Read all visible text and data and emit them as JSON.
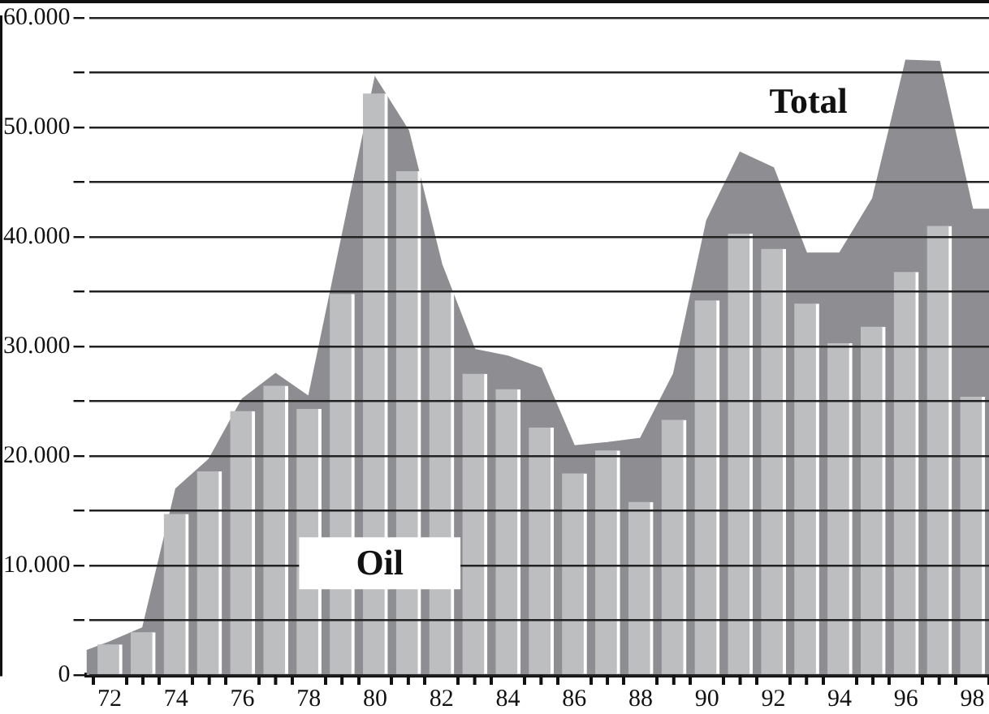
{
  "chart_data": {
    "type": "bar",
    "xlim": [
      71.3,
      98.5
    ],
    "xticks": [
      72,
      {
        "value": 73,
        "label": null
      },
      74,
      {
        "value": 75,
        "label": null
      },
      76,
      {
        "value": 77,
        "label": null
      },
      78,
      {
        "value": 79,
        "label": null
      },
      80,
      {
        "value": 81,
        "label": null
      },
      82,
      {
        "value": 83,
        "label": null
      },
      84,
      {
        "value": 85,
        "label": null
      },
      86,
      {
        "value": 87,
        "label": null
      },
      88,
      {
        "value": 89,
        "label": null
      },
      90,
      {
        "value": 91,
        "label": null
      },
      92,
      {
        "value": 93,
        "label": null
      },
      94,
      {
        "value": 95,
        "label": null
      },
      96,
      {
        "value": 97,
        "label": null
      },
      98
    ],
    "ylim": [
      0,
      60000
    ],
    "yticks": [
      {
        "value": 0,
        "label": "0"
      },
      {
        "value": 5000,
        "label": null
      },
      {
        "value": 10000,
        "label": "10.000"
      },
      {
        "value": 15000,
        "label": null
      },
      {
        "value": 20000,
        "label": "20.000"
      },
      {
        "value": 25000,
        "label": null
      },
      {
        "value": 30000,
        "label": "30.000"
      },
      {
        "value": 35000,
        "label": null
      },
      {
        "value": 40000,
        "label": "40.000"
      },
      {
        "value": 45000,
        "label": null
      },
      {
        "value": 50000,
        "label": "50.000"
      },
      {
        "value": 55000,
        "label": null
      },
      {
        "value": 60000,
        "label": "60.000"
      }
    ],
    "grid": "y",
    "legend": false,
    "series": [
      {
        "name": "Total",
        "type": "area",
        "color": "#8e8e92",
        "x": [
          71.3,
          72,
          73,
          74,
          75,
          76,
          77,
          78,
          79,
          80,
          81,
          82,
          83,
          84,
          85,
          86,
          87,
          88,
          89,
          90,
          91,
          92,
          93,
          94,
          95,
          96,
          97,
          98,
          98.5
        ],
        "values": [
          2200,
          3000,
          4300,
          17000,
          19700,
          25200,
          27500,
          25400,
          null,
          54500,
          49700,
          37500,
          29700,
          29100,
          28000,
          20900,
          21200,
          21600,
          27500,
          41500,
          47700,
          46300,
          38500,
          38500,
          43500,
          56100,
          56000,
          42500,
          42500
        ]
      },
      {
        "name": "Oil",
        "color": "#bdbec0",
        "x": [
          72,
          73,
          74,
          75,
          76,
          77,
          78,
          79,
          80,
          81,
          82,
          83,
          84,
          85,
          86,
          87,
          88,
          89,
          90,
          91,
          92,
          93,
          94,
          95,
          96,
          97,
          98
        ],
        "values": [
          2800,
          3900,
          14700,
          18600,
          24100,
          26400,
          24300,
          34800,
          53100,
          46000,
          35000,
          27500,
          26100,
          22600,
          18400,
          20500,
          15800,
          23300,
          34200,
          40300,
          38900,
          33900,
          30300,
          31800,
          36800,
          41000,
          25400
        ]
      }
    ]
  }
}
